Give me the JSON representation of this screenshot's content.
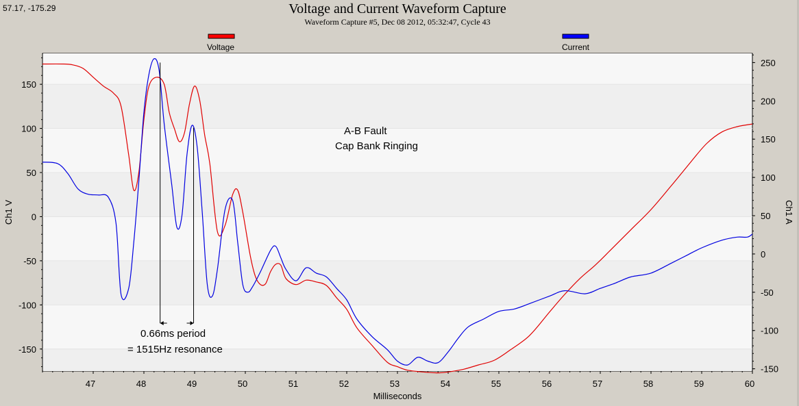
{
  "cursor_readout": "57.17, -175.29",
  "chart_data": {
    "type": "line",
    "title": "Voltage and Current Waveform Capture",
    "subtitle": "Waveform Capture #5, Dec 08 2012, 05:32:47,  Cycle 43",
    "xlabel": "Milliseconds",
    "ylabel_left": "Ch1 V",
    "ylabel_right": "Ch1 A",
    "xlim": [
      46.0,
      60.0
    ],
    "ylim_left": [
      -175,
      185
    ],
    "ylim_right": [
      -153,
      262
    ],
    "x_ticks": [
      47,
      48,
      49,
      50,
      51,
      52,
      53,
      54,
      55,
      56,
      57,
      58,
      59,
      60
    ],
    "y_ticks_left": [
      150,
      100,
      50,
      0,
      -50,
      -100,
      -150
    ],
    "y_ticks_right": [
      250,
      200,
      150,
      100,
      50,
      0,
      -50,
      -100,
      -150
    ],
    "grid": "horizontal bands",
    "legend": [
      {
        "name": "Voltage",
        "color": "#ff0000",
        "placement": "top-left"
      },
      {
        "name": "Current",
        "color": "#0000ff",
        "placement": "top-right"
      }
    ],
    "series": [
      {
        "name": "Voltage",
        "axis": "left",
        "color": "#e00000",
        "x": [
          46.0,
          46.4,
          46.6,
          46.8,
          47.0,
          47.2,
          47.4,
          47.55,
          47.7,
          47.8,
          47.9,
          48.0,
          48.1,
          48.25,
          48.4,
          48.5,
          48.6,
          48.7,
          48.8,
          48.9,
          49.0,
          49.1,
          49.2,
          49.3,
          49.45,
          49.6,
          49.75,
          49.85,
          49.95,
          50.1,
          50.2,
          50.3,
          50.4,
          50.5,
          50.6,
          50.7,
          50.8,
          51.0,
          51.2,
          51.4,
          51.6,
          51.8,
          52.0,
          52.2,
          52.5,
          52.8,
          53.0,
          53.2,
          53.5,
          53.8,
          54.0,
          54.3,
          54.6,
          54.9,
          55.2,
          55.6,
          56.0,
          56.3,
          56.6,
          56.9,
          57.2,
          57.6,
          58.0,
          58.4,
          58.8,
          59.1,
          59.4,
          59.7,
          60.0
        ],
        "y": [
          173,
          173,
          172,
          168,
          158,
          148,
          140,
          125,
          70,
          30,
          50,
          110,
          148,
          158,
          150,
          118,
          100,
          85,
          95,
          128,
          148,
          132,
          92,
          60,
          -17,
          -10,
          25,
          30,
          5,
          -45,
          -68,
          -77,
          -76,
          -62,
          -54,
          -55,
          -70,
          -77,
          -72,
          -74,
          -78,
          -92,
          -105,
          -126,
          -146,
          -165,
          -170,
          -174,
          -176,
          -177,
          -176,
          -173,
          -168,
          -163,
          -152,
          -135,
          -108,
          -88,
          -70,
          -55,
          -38,
          -15,
          8,
          35,
          63,
          83,
          96,
          102,
          105
        ]
      },
      {
        "name": "Current",
        "axis": "right",
        "color": "#0000e0",
        "x": [
          46.0,
          46.3,
          46.5,
          46.7,
          46.9,
          47.1,
          47.3,
          47.45,
          47.55,
          47.7,
          47.8,
          47.9,
          48.0,
          48.1,
          48.2,
          48.3,
          48.4,
          48.55,
          48.65,
          48.75,
          48.85,
          48.95,
          49.05,
          49.15,
          49.25,
          49.35,
          49.45,
          49.6,
          49.75,
          49.85,
          49.95,
          50.05,
          50.15,
          50.3,
          50.5,
          50.6,
          50.7,
          50.8,
          51.0,
          51.2,
          51.4,
          51.6,
          51.8,
          52.0,
          52.2,
          52.5,
          52.8,
          53.0,
          53.2,
          53.4,
          53.6,
          53.8,
          54.0,
          54.2,
          54.4,
          54.7,
          55.0,
          55.3,
          55.6,
          56.0,
          56.3,
          56.7,
          57.0,
          57.3,
          57.6,
          58.0,
          58.4,
          58.7,
          59.0,
          59.4,
          59.7,
          59.9,
          60.0
        ],
        "y": [
          120,
          118,
          105,
          85,
          78,
          77,
          74,
          40,
          -53,
          -45,
          15,
          95,
          185,
          235,
          255,
          240,
          170,
          90,
          35,
          50,
          130,
          168,
          140,
          55,
          -40,
          -55,
          -20,
          58,
          70,
          15,
          -40,
          -50,
          -42,
          -23,
          5,
          10,
          -5,
          -20,
          -35,
          -18,
          -25,
          -30,
          -45,
          -60,
          -85,
          -108,
          -125,
          -140,
          -145,
          -135,
          -140,
          -142,
          -128,
          -110,
          -95,
          -85,
          -75,
          -72,
          -65,
          -55,
          -48,
          -52,
          -45,
          -38,
          -30,
          -25,
          -12,
          -2,
          8,
          18,
          22,
          22,
          26
        ]
      }
    ],
    "annotations": {
      "fault_label": "A-B Fault",
      "ringing_label": "Cap Bank Ringing",
      "period_label": "0.66ms period",
      "resonance_label": "= 1515Hz resonance",
      "marker_x": [
        48.32,
        48.98
      ]
    }
  }
}
